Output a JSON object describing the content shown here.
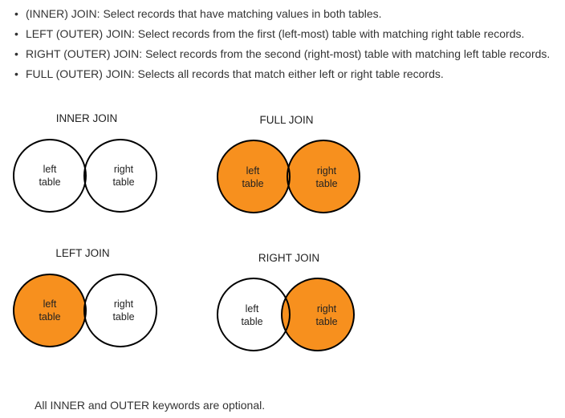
{
  "bullets": [
    "(INNER) JOIN: Select records that have matching values in both tables.",
    "LEFT (OUTER) JOIN: Select records from the first (left-most) table with matching right table records.",
    "RIGHT (OUTER) JOIN: Select records from the second (right-most) table with matching left table records.",
    "FULL (OUTER) JOIN: Selects all records that match either left or right table records."
  ],
  "bullet_symbol": "•",
  "colors": {
    "fill": "#F7901E",
    "stroke": "#000000",
    "text": "#333333"
  },
  "diagrams": {
    "inner": {
      "title": "INNER JOIN",
      "left_label": [
        "left",
        "table"
      ],
      "right_label": [
        "right",
        "table"
      ],
      "highlight": "intersection"
    },
    "full": {
      "title": "FULL JOIN",
      "left_label": [
        "left",
        "table"
      ],
      "right_label": [
        "right",
        "table"
      ],
      "highlight": "both"
    },
    "left": {
      "title": "LEFT JOIN",
      "left_label": [
        "left",
        "table"
      ],
      "right_label": [
        "right",
        "table"
      ],
      "highlight": "left"
    },
    "right": {
      "title": "RIGHT JOIN",
      "left_label": [
        "left",
        "table"
      ],
      "right_label": [
        "right",
        "table"
      ],
      "highlight": "right"
    }
  },
  "footer": "All INNER and OUTER keywords are optional."
}
